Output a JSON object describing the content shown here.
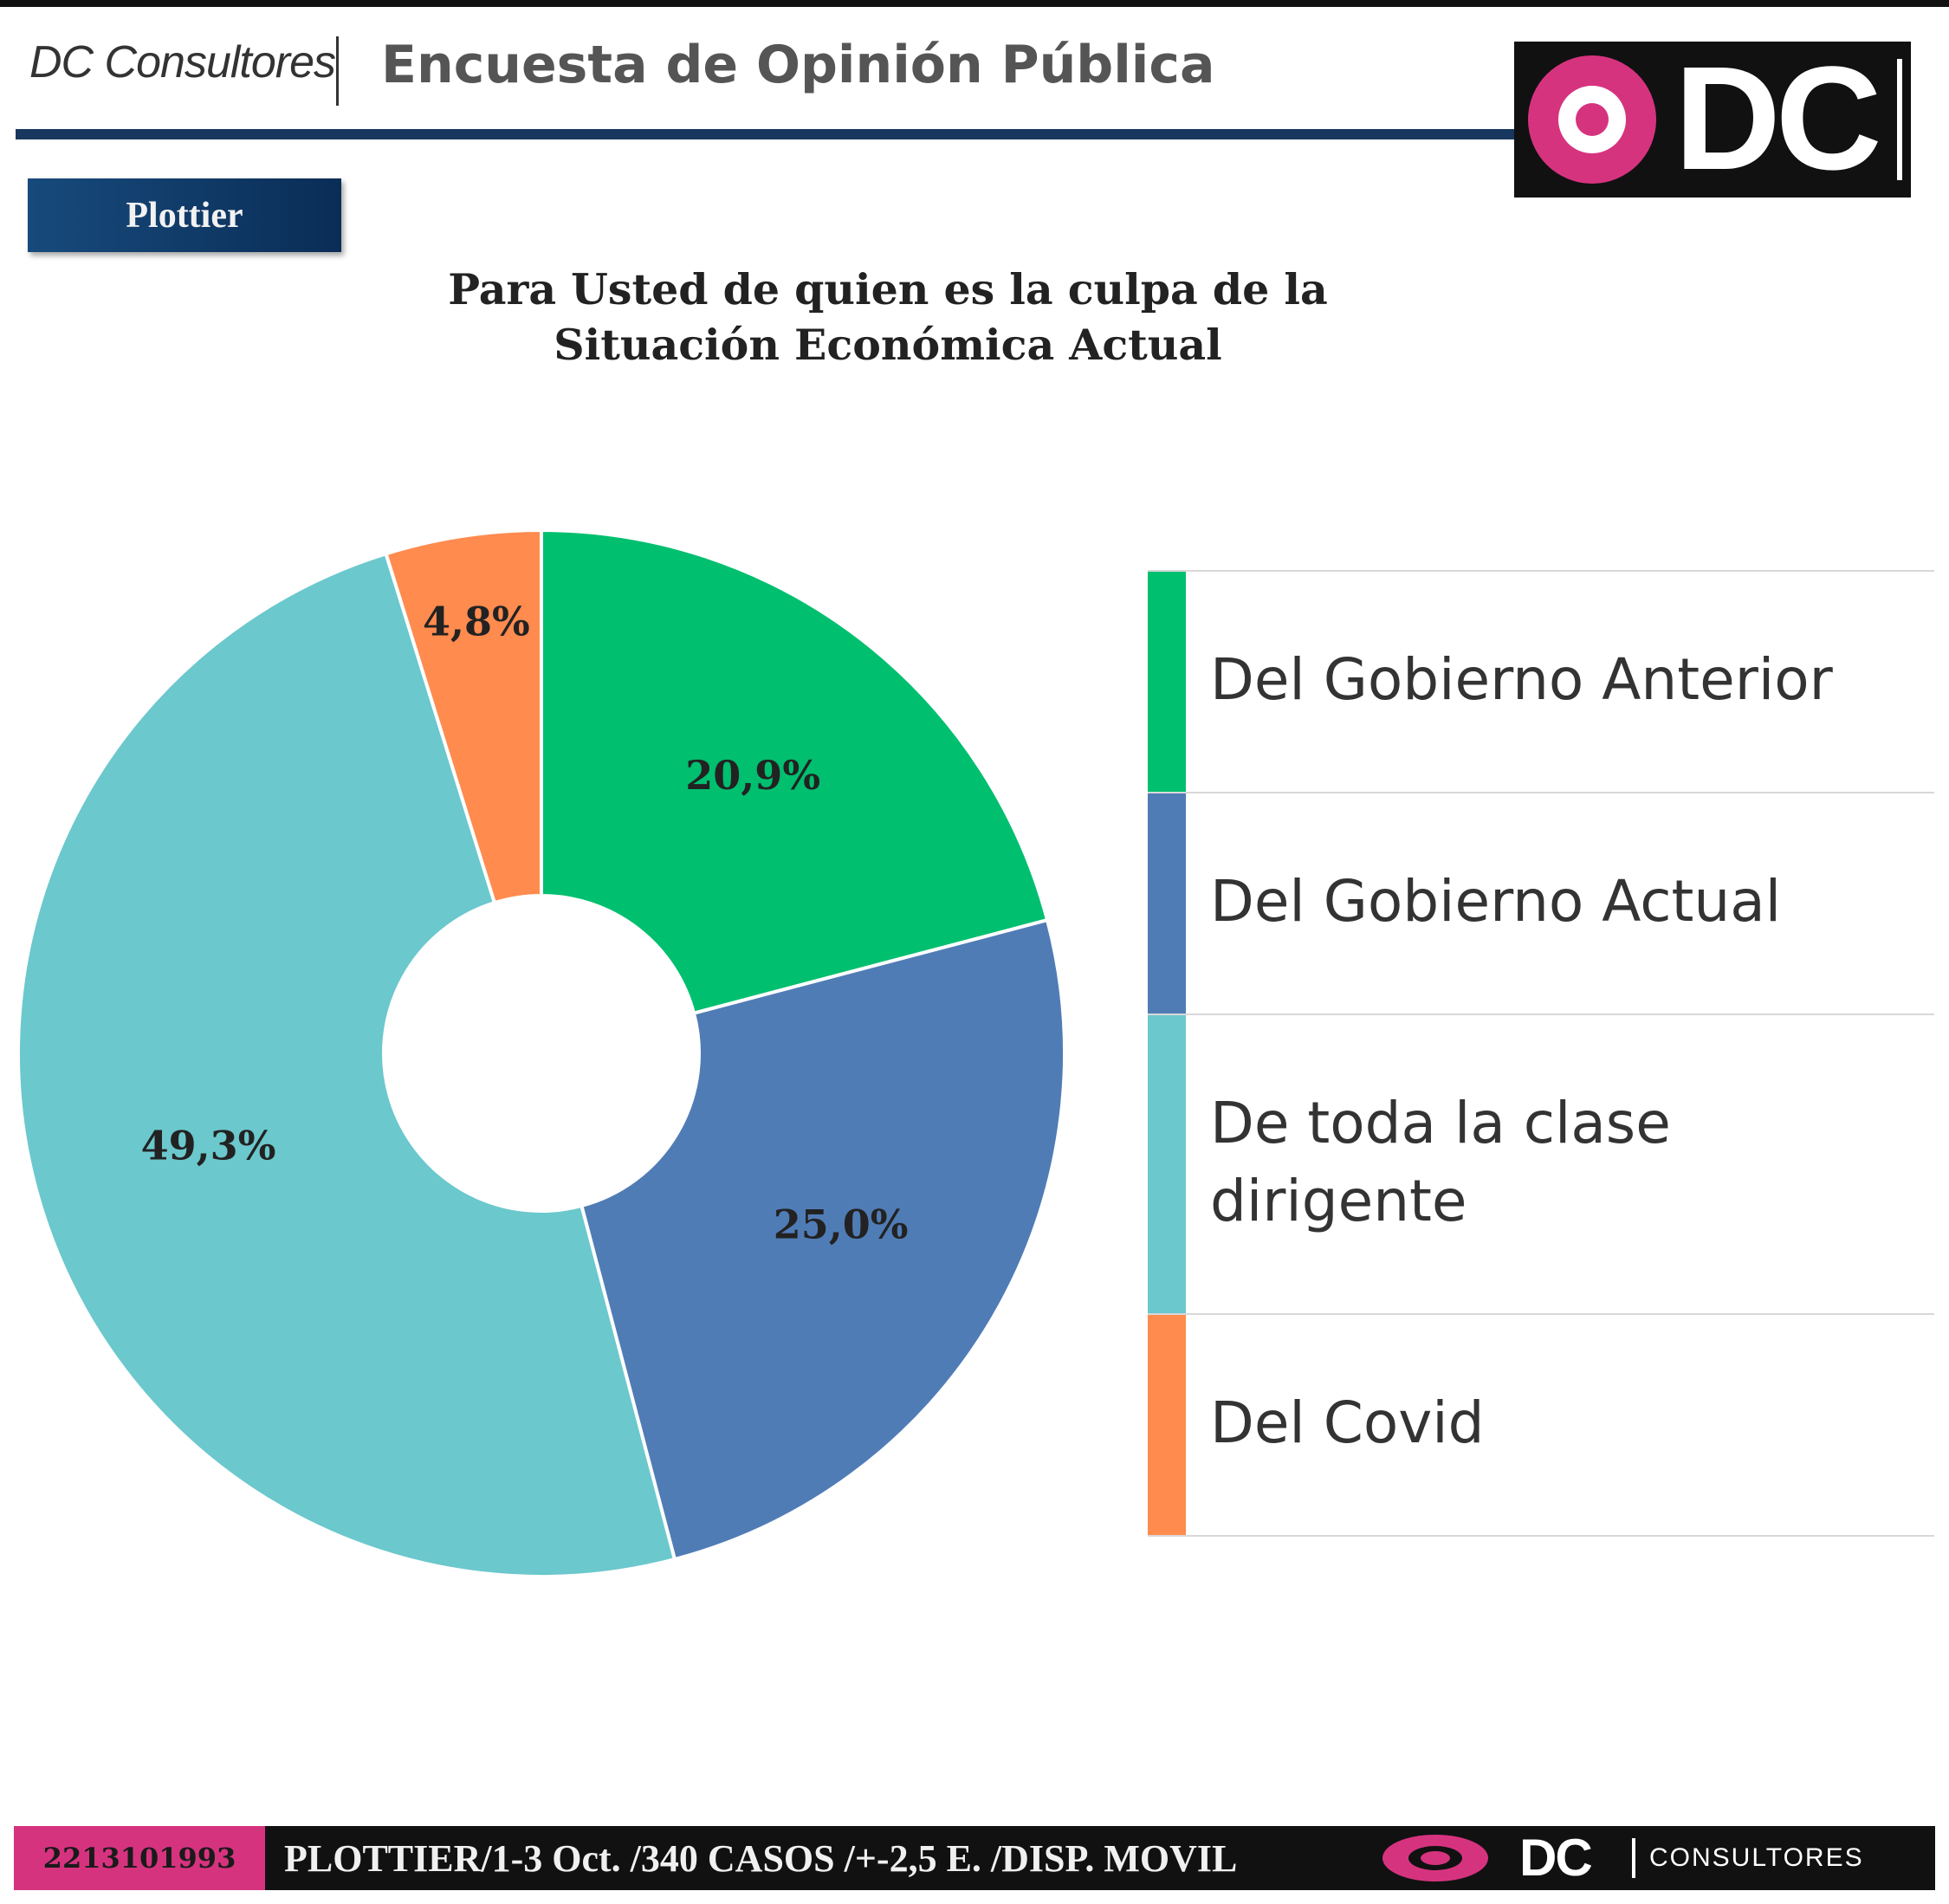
{
  "header": {
    "brand": "DC Consultores",
    "survey_title": "Encuesta de Opinión Pública",
    "logo_text": "DC",
    "location": "Plottier"
  },
  "chart_data": {
    "type": "pie",
    "donut": true,
    "title_lines": [
      "Para Usted de quien es la culpa de la",
      "Situación Económica Actual"
    ],
    "categories": [
      "Del Gobierno Anterior",
      "Del Gobierno Actual",
      "De toda la clase dirigente",
      "Del Covid"
    ],
    "values": [
      20.9,
      25.0,
      49.3,
      4.8
    ],
    "value_labels": [
      "20,9%",
      "25,0%",
      "49,3%",
      "4,8%"
    ],
    "colors": [
      "#00bf6f",
      "#507cb6",
      "#6bc8cd",
      "#ff8b4f"
    ],
    "legend_position": "right"
  },
  "legend": [
    {
      "label_lines": [
        "Del Gobierno Anterior"
      ]
    },
    {
      "label_lines": [
        "Del Gobierno Actual"
      ]
    },
    {
      "label_lines": [
        "De toda la clase",
        "dirigente"
      ]
    },
    {
      "label_lines": [
        "Del Covid"
      ]
    }
  ],
  "footer": {
    "phone": "2213101993",
    "info": "PLOTTIER/1-3 Oct. /340 CASOS /+-2,5 E. /DISP. MOVIL",
    "logo_text": "DC",
    "consultores": "CONSULTORES"
  }
}
